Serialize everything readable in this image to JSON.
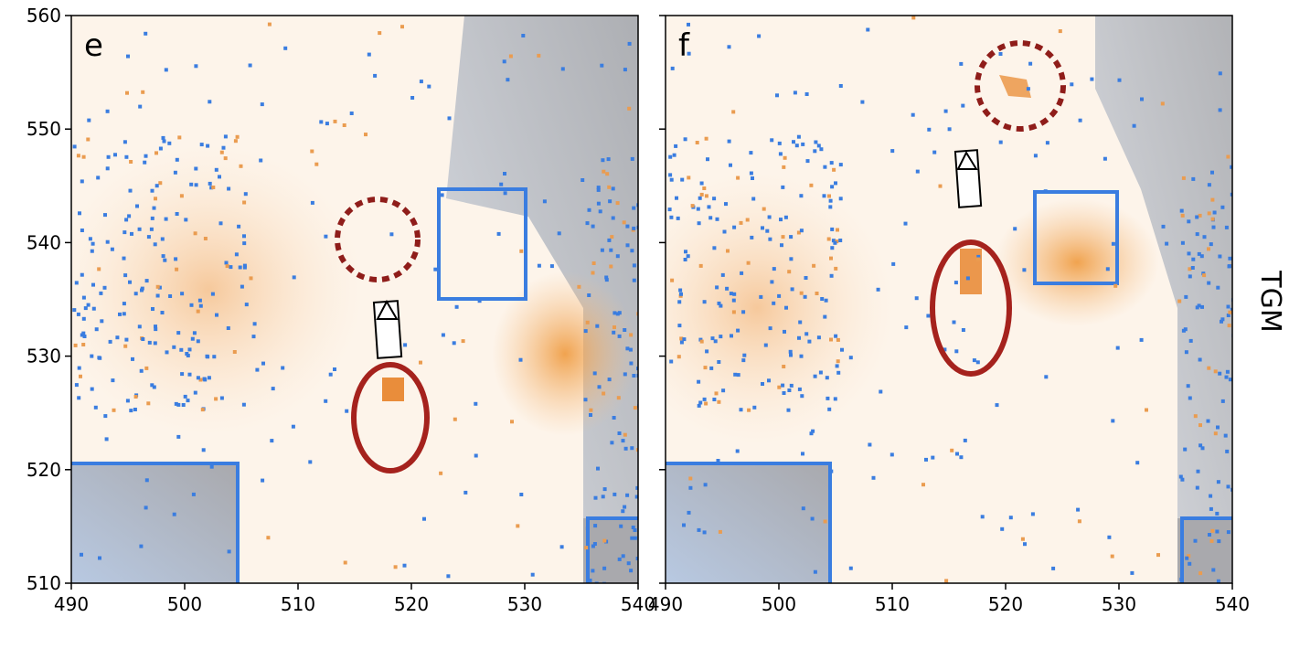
{
  "chart_data": [
    {
      "type": "image",
      "title": "e",
      "xlim": [
        490,
        540
      ],
      "ylim": [
        510,
        560
      ],
      "xticks": [
        490,
        500,
        510,
        520,
        530,
        540
      ],
      "yticks": [
        510,
        520,
        530,
        540,
        550,
        560
      ],
      "ytick_labels": true
    },
    {
      "type": "image",
      "title": "f",
      "xlim": [
        490,
        540
      ],
      "ylim": [
        510,
        560
      ],
      "xticks": [
        490,
        500,
        510,
        520,
        530,
        540
      ],
      "yticks": [
        510,
        520,
        530,
        540,
        550,
        560
      ],
      "ytick_labels": false
    }
  ],
  "row_label": "TGM"
}
